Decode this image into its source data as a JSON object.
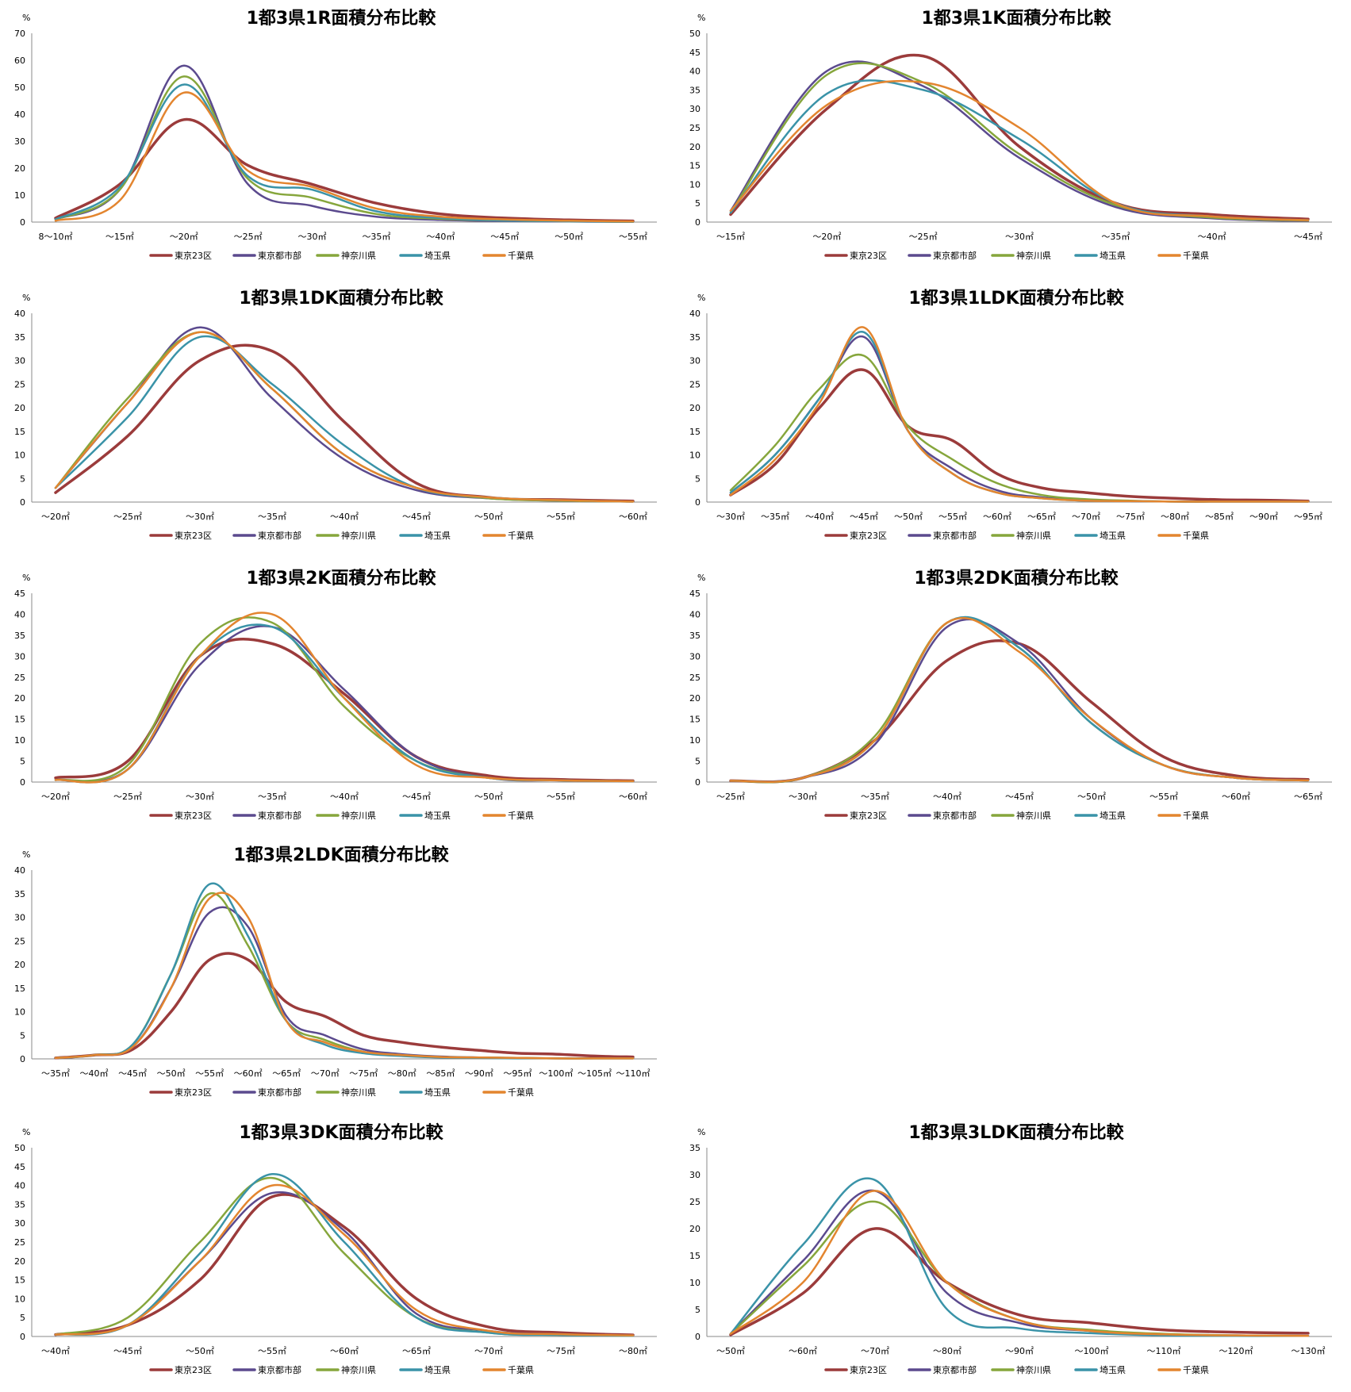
{
  "legend": [
    "東京23区",
    "東京都市部",
    "神奈川県",
    "埼玉県",
    "千葉県"
  ],
  "colors": {
    "東京23区": "#9b3b3b",
    "東京都市部": "#5b4a8e",
    "神奈川県": "#86a63c",
    "埼玉県": "#3a93a8",
    "千葉県": "#e3852f"
  },
  "chart_data": [
    {
      "type": "line",
      "title": "1都3県1R面積分布比較",
      "ylabel": "%",
      "ylim": [
        0,
        70
      ],
      "yticks": [
        0,
        10,
        20,
        30,
        40,
        50,
        60,
        70
      ],
      "categories": [
        "8〜10㎡",
        "〜15㎡",
        "〜20㎡",
        "〜25㎡",
        "〜30㎡",
        "〜35㎡",
        "〜40㎡",
        "〜45㎡",
        "〜50㎡",
        "〜55㎡"
      ],
      "series": [
        {
          "name": "東京23区",
          "values": [
            1.5,
            14,
            38,
            21,
            14,
            7,
            3,
            1.5,
            0.8,
            0.4
          ]
        },
        {
          "name": "東京都市部",
          "values": [
            1,
            12,
            58,
            14,
            6,
            2,
            0.8,
            0.4,
            0.2,
            0.1
          ]
        },
        {
          "name": "神奈川県",
          "values": [
            1,
            12,
            54,
            16,
            9,
            3,
            1.2,
            0.6,
            0.3,
            0.1
          ]
        },
        {
          "name": "埼玉県",
          "values": [
            1,
            13,
            51,
            17,
            12,
            4,
            1.5,
            0.6,
            0.3,
            0.1
          ]
        },
        {
          "name": "千葉県",
          "values": [
            0.5,
            8,
            48,
            19,
            13,
            5,
            2,
            1,
            0.5,
            0.2
          ]
        }
      ]
    },
    {
      "type": "line",
      "title": "1都3県1K面積分布比較",
      "ylabel": "%",
      "ylim": [
        0,
        50
      ],
      "yticks": [
        0,
        5,
        10,
        15,
        20,
        25,
        30,
        35,
        40,
        45,
        50
      ],
      "categories": [
        "〜15㎡",
        "〜20㎡",
        "〜25㎡",
        "〜30㎡",
        "〜35㎡",
        "〜40㎡",
        "〜45㎡"
      ],
      "series": [
        {
          "name": "東京23区",
          "values": [
            2,
            30,
            44,
            20,
            5,
            2,
            0.8
          ]
        },
        {
          "name": "東京都市部",
          "values": [
            3,
            40,
            36,
            17,
            4,
            1,
            0.3
          ]
        },
        {
          "name": "神奈川県",
          "values": [
            2.5,
            39,
            37,
            18,
            4.5,
            1.2,
            0.4
          ]
        },
        {
          "name": "埼玉県",
          "values": [
            2.5,
            34,
            35,
            22,
            5,
            1.5,
            0.5
          ]
        },
        {
          "name": "千葉県",
          "values": [
            3,
            31,
            37,
            25,
            5,
            1.5,
            0.5
          ]
        }
      ]
    },
    {
      "type": "line",
      "title": "1都3県1DK面積分布比較",
      "ylabel": "%",
      "ylim": [
        0,
        40
      ],
      "yticks": [
        0,
        5,
        10,
        15,
        20,
        25,
        30,
        35,
        40
      ],
      "categories": [
        "〜20㎡",
        "〜25㎡",
        "〜30㎡",
        "〜35㎡",
        "〜40㎡",
        "〜45㎡",
        "〜50㎡",
        "〜55㎡",
        "〜60㎡"
      ],
      "series": [
        {
          "name": "東京23区",
          "values": [
            2,
            14,
            30,
            32,
            17,
            4,
            1,
            0.5,
            0.2
          ]
        },
        {
          "name": "東京都市部",
          "values": [
            3,
            21,
            37,
            22,
            9,
            2.5,
            0.8,
            0.3,
            0.1
          ]
        },
        {
          "name": "神奈川県",
          "values": [
            3,
            22,
            36,
            24,
            10,
            3,
            0.8,
            0.3,
            0.1
          ]
        },
        {
          "name": "埼玉県",
          "values": [
            3,
            18,
            35,
            25,
            12,
            3,
            1,
            0.4,
            0.1
          ]
        },
        {
          "name": "千葉県",
          "values": [
            3,
            21,
            36,
            24,
            10,
            3,
            1,
            0.4,
            0.1
          ]
        }
      ]
    },
    {
      "type": "line",
      "title": "1都3県1LDK面積分布比較",
      "ylabel": "%",
      "ylim": [
        0,
        40
      ],
      "yticks": [
        0,
        5,
        10,
        15,
        20,
        25,
        30,
        35,
        40
      ],
      "categories": [
        "〜30㎡",
        "〜35㎡",
        "〜40㎡",
        "〜45㎡",
        "〜50㎡",
        "〜55㎡",
        "〜60㎡",
        "〜65㎡",
        "〜70㎡",
        "〜75㎡",
        "〜80㎡",
        "〜85㎡",
        "〜90㎡",
        "〜95㎡"
      ],
      "series": [
        {
          "name": "東京23区",
          "values": [
            1.5,
            8,
            20,
            28,
            16,
            13,
            6,
            3,
            2,
            1.2,
            0.8,
            0.5,
            0.4,
            0.2
          ]
        },
        {
          "name": "東京都市部",
          "values": [
            2,
            10,
            22,
            35,
            15,
            7,
            2.5,
            1,
            0.5,
            0.2,
            0.1,
            0.1,
            0.1,
            0.1
          ]
        },
        {
          "name": "神奈川県",
          "values": [
            2.5,
            12,
            24,
            31,
            16,
            9,
            4,
            1.5,
            0.6,
            0.3,
            0.1,
            0.1,
            0.1,
            0.1
          ]
        },
        {
          "name": "埼玉県",
          "values": [
            2,
            10,
            22,
            36,
            15,
            6,
            2,
            0.8,
            0.3,
            0.2,
            0.1,
            0.1,
            0.1,
            0.1
          ]
        },
        {
          "name": "千葉県",
          "values": [
            1.5,
            9,
            21,
            37,
            15,
            6,
            2,
            0.8,
            0.3,
            0.2,
            0.1,
            0.1,
            0.1,
            0.1
          ]
        }
      ]
    },
    {
      "type": "line",
      "title": "1都3県2K面積分布比較",
      "ylabel": "%",
      "ylim": [
        0,
        45
      ],
      "yticks": [
        0,
        5,
        10,
        15,
        20,
        25,
        30,
        35,
        40,
        45
      ],
      "categories": [
        "〜20㎡",
        "〜25㎡",
        "〜30㎡",
        "〜35㎡",
        "〜40㎡",
        "〜45㎡",
        "〜50㎡",
        "〜55㎡",
        "〜60㎡"
      ],
      "series": [
        {
          "name": "東京23区",
          "values": [
            1,
            5,
            30,
            33,
            21,
            6,
            1.5,
            0.6,
            0.3
          ]
        },
        {
          "name": "東京都市部",
          "values": [
            0.5,
            3,
            28,
            37,
            22,
            6,
            1,
            0.4,
            0.2
          ]
        },
        {
          "name": "神奈川県",
          "values": [
            0.5,
            4,
            33,
            38,
            18,
            5,
            1,
            0.4,
            0.2
          ]
        },
        {
          "name": "埼玉県",
          "values": [
            0.5,
            3,
            30,
            37,
            20,
            5,
            1,
            0.4,
            0.2
          ]
        },
        {
          "name": "千葉県",
          "values": [
            0.5,
            3,
            30,
            40,
            20,
            4,
            1,
            0.4,
            0.2
          ]
        }
      ]
    },
    {
      "type": "line",
      "title": "1都3県2DK面積分布比較",
      "ylabel": "%",
      "ylim": [
        0,
        45
      ],
      "yticks": [
        0,
        5,
        10,
        15,
        20,
        25,
        30,
        35,
        40,
        45
      ],
      "categories": [
        "〜25㎡",
        "〜30㎡",
        "〜35㎡",
        "〜40㎡",
        "〜45㎡",
        "〜50㎡",
        "〜55㎡",
        "〜60㎡",
        "〜65㎡"
      ],
      "series": [
        {
          "name": "東京23区",
          "values": [
            0.3,
            1,
            10,
            29,
            33,
            19,
            6,
            1.5,
            0.6
          ]
        },
        {
          "name": "東京都市部",
          "values": [
            0.3,
            1,
            9,
            37,
            33,
            15,
            4,
            1,
            0.4
          ]
        },
        {
          "name": "神奈川県",
          "values": [
            0.3,
            1,
            11,
            38,
            32,
            14,
            4,
            1,
            0.4
          ]
        },
        {
          "name": "埼玉県",
          "values": [
            0.3,
            1,
            10,
            38,
            32,
            14,
            4,
            1,
            0.4
          ]
        },
        {
          "name": "千葉県",
          "values": [
            0.3,
            1,
            10,
            38,
            31,
            15,
            4,
            1,
            0.4
          ]
        }
      ]
    },
    {
      "type": "line",
      "title": "1都3県2LDK面積分布比較",
      "ylabel": "%",
      "ylim": [
        0,
        40
      ],
      "yticks": [
        0,
        5,
        10,
        15,
        20,
        25,
        30,
        35,
        40
      ],
      "categories": [
        "〜35㎡",
        "〜40㎡",
        "〜45㎡",
        "〜50㎡",
        "〜55㎡",
        "〜60㎡",
        "〜65㎡",
        "〜70㎡",
        "〜75㎡",
        "〜80㎡",
        "〜85㎡",
        "〜90㎡",
        "〜95㎡",
        "〜100㎡",
        "〜105㎡",
        "〜110㎡"
      ],
      "series": [
        {
          "name": "東京23区",
          "values": [
            0.2,
            0.8,
            2,
            10,
            21,
            21,
            12,
            9,
            5,
            3.5,
            2.5,
            1.8,
            1.2,
            1,
            0.6,
            0.4
          ]
        },
        {
          "name": "東京都市部",
          "values": [
            0.2,
            0.8,
            2.5,
            15,
            31,
            28,
            9,
            5,
            2,
            1,
            0.5,
            0.3,
            0.2,
            0.1,
            0.1,
            0.1
          ]
        },
        {
          "name": "神奈川県",
          "values": [
            0.2,
            0.8,
            3,
            18,
            35,
            24,
            8,
            4,
            1.5,
            0.8,
            0.4,
            0.3,
            0.2,
            0.1,
            0.1,
            0.1
          ]
        },
        {
          "name": "埼玉県",
          "values": [
            0.2,
            0.8,
            3,
            18,
            37,
            26,
            8,
            3,
            1.2,
            0.6,
            0.3,
            0.2,
            0.1,
            0.1,
            0.1,
            0.1
          ]
        },
        {
          "name": "千葉県",
          "values": [
            0.2,
            0.8,
            2.5,
            15,
            34,
            30,
            8,
            3.5,
            1.5,
            0.8,
            0.4,
            0.3,
            0.2,
            0.1,
            0.1,
            0.1
          ]
        }
      ]
    },
    {
      "type": "line",
      "title": "1都3県3DK面積分布比較",
      "ylabel": "%",
      "ylim": [
        0,
        50
      ],
      "yticks": [
        0,
        5,
        10,
        15,
        20,
        25,
        30,
        35,
        40,
        45,
        50
      ],
      "categories": [
        "〜40㎡",
        "〜45㎡",
        "〜50㎡",
        "〜55㎡",
        "〜60㎡",
        "〜65㎡",
        "〜70㎡",
        "〜75㎡",
        "〜80㎡"
      ],
      "series": [
        {
          "name": "東京23区",
          "values": [
            0.5,
            3,
            15,
            37,
            29,
            10,
            2.5,
            1,
            0.4
          ]
        },
        {
          "name": "東京都市部",
          "values": [
            0.5,
            3,
            20,
            38,
            28,
            6,
            1.5,
            0.6,
            0.3
          ]
        },
        {
          "name": "神奈川県",
          "values": [
            0.5,
            5,
            25,
            42,
            22,
            5,
            1,
            0.4,
            0.2
          ]
        },
        {
          "name": "埼玉県",
          "values": [
            0.5,
            3,
            22,
            43,
            25,
            5,
            1,
            0.4,
            0.2
          ]
        },
        {
          "name": "千葉県",
          "values": [
            0.5,
            3,
            20,
            40,
            27,
            7,
            1.5,
            0.6,
            0.3
          ]
        }
      ]
    },
    {
      "type": "line",
      "title": "1都3県3LDK面積分布比較",
      "ylabel": "%",
      "ylim": [
        0,
        35
      ],
      "yticks": [
        0,
        5,
        10,
        15,
        20,
        25,
        30,
        35
      ],
      "categories": [
        "〜50㎡",
        "〜60㎡",
        "〜70㎡",
        "〜80㎡",
        "〜90㎡",
        "〜100㎡",
        "〜110㎡",
        "〜120㎡",
        "〜130㎡"
      ],
      "series": [
        {
          "name": "東京23区",
          "values": [
            0.3,
            8,
            20,
            10,
            4,
            2.5,
            1.2,
            0.8,
            0.6
          ]
        },
        {
          "name": "東京都市部",
          "values": [
            0.5,
            14,
            27,
            8,
            2.5,
            1,
            0.4,
            0.2,
            0.1
          ]
        },
        {
          "name": "神奈川県",
          "values": [
            0.5,
            13,
            25,
            10,
            3,
            1.2,
            0.5,
            0.2,
            0.1
          ]
        },
        {
          "name": "埼玉県",
          "values": [
            0.5,
            17,
            29,
            5,
            1.5,
            0.6,
            0.2,
            0.1,
            0.1
          ]
        },
        {
          "name": "千葉県",
          "values": [
            0.5,
            10,
            27,
            10,
            3,
            1,
            0.4,
            0.2,
            0.1
          ]
        }
      ]
    }
  ]
}
